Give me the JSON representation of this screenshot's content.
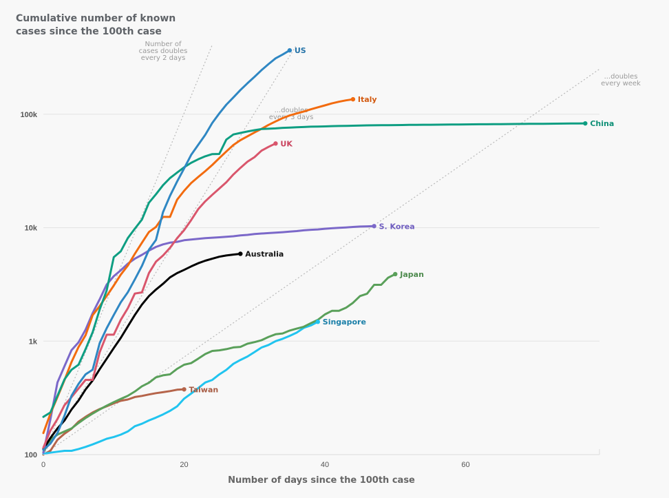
{
  "chart_data": {
    "type": "line",
    "title": "Cumulative number of known cases since the 100th case",
    "xlabel": "Number of days since the 100th case",
    "ylabel": "",
    "yscale": "log",
    "xlim": [
      0,
      79
    ],
    "ylim": [
      100,
      400000
    ],
    "grid": true,
    "x_ticks": [
      0,
      20,
      40,
      60
    ],
    "y_ticks": [
      {
        "value": 100,
        "label": "100"
      },
      {
        "value": 1000,
        "label": "1k"
      },
      {
        "value": 10000,
        "label": "10k"
      },
      {
        "value": 100000,
        "label": "100k"
      }
    ],
    "reference_lines": [
      {
        "name": "doubles-every-2-days",
        "label_lines": [
          "Number of",
          "cases doubles",
          "every 2 days"
        ],
        "doubling_days": 2,
        "start_value": 100,
        "x_end": 24
      },
      {
        "name": "doubles-every-3-days",
        "label_lines": [
          "...doubles",
          "every 3 days"
        ],
        "doubling_days": 3,
        "start_value": 100,
        "x_end": 36
      },
      {
        "name": "doubles-every-week",
        "label_lines": [
          "...doubles",
          "every week"
        ],
        "doubling_days": 7,
        "start_value": 100,
        "x_end": 79
      }
    ],
    "series": [
      {
        "name": "China",
        "color": "#0e9e82",
        "values": [
          215,
          235,
          330,
          460,
          560,
          620,
          850,
          1200,
          1900,
          2800,
          5500,
          6200,
          8100,
          9800,
          11800,
          16600,
          19700,
          23700,
          27400,
          30600,
          34100,
          37300,
          40100,
          42600,
          44600,
          44700,
          59800,
          66400,
          68500,
          70500,
          72400,
          74100,
          74600,
          75100,
          75900,
          76300,
          76800,
          77200,
          77700,
          78000,
          78200,
          78600,
          78800,
          79000,
          79300,
          79500,
          79800,
          80000,
          80100,
          80200,
          80300,
          80400,
          80600,
          80700,
          80800,
          80900,
          81000,
          81100,
          81200,
          81300,
          81400,
          81500,
          81600,
          81700,
          81800,
          81900,
          82000,
          82100,
          82200,
          82300,
          82400,
          82500,
          82600,
          82700,
          82800,
          82900,
          83000,
          83100
        ]
      },
      {
        "name": "US",
        "color": "#2f87c3",
        "values": [
          110,
          125,
          155,
          220,
          330,
          420,
          510,
          560,
          960,
          1300,
          1700,
          2200,
          2700,
          3500,
          4600,
          6400,
          7800,
          13700,
          19100,
          25500,
          33300,
          43800,
          53700,
          65800,
          83800,
          101700,
          121500,
          140900,
          163600,
          187700,
          214000,
          245000,
          277000,
          311000,
          336000,
          366000
        ]
      },
      {
        "name": "Italy",
        "color": "#f26b0f",
        "values": [
          155,
          229,
          322,
          453,
          655,
          888,
          1128,
          1694,
          2036,
          2502,
          3089,
          3858,
          4636,
          5883,
          7375,
          9172,
          10149,
          12462,
          12462,
          17660,
          21157,
          24747,
          27980,
          31506,
          35713,
          41035,
          47021,
          53578,
          59138,
          63927,
          69176,
          74386,
          80589,
          86498,
          92472,
          97689,
          101739,
          105792,
          110574,
          115242,
          119827,
          124632,
          128948,
          132547,
          135586
        ]
      },
      {
        "name": "UK",
        "color": "#d9566c",
        "values": [
          115,
          163,
          206,
          273,
          321,
          382,
          456,
          456,
          798,
          1140,
          1140,
          1543,
          1950,
          2626,
          2689,
          3983,
          5018,
          5683,
          6650,
          8077,
          9529,
          11658,
          14543,
          17089,
          19522,
          22141,
          25150,
          29474,
          33718,
          38168,
          41903,
          47806,
          51608,
          55242
        ]
      },
      {
        "name": "S. Korea",
        "color": "#7b68c9",
        "values": [
          104,
          204,
          433,
          602,
          833,
          977,
          1261,
          1766,
          2337,
          3150,
          3736,
          4212,
          4812,
          5328,
          5766,
          6284,
          6767,
          7134,
          7382,
          7513,
          7755,
          7869,
          7979,
          8086,
          8162,
          8236,
          8320,
          8413,
          8565,
          8652,
          8799,
          8897,
          8961,
          9037,
          9137,
          9241,
          9332,
          9478,
          9583,
          9661,
          9786,
          9887,
          9976,
          10062,
          10156,
          10237,
          10284,
          10331
        ]
      },
      {
        "name": "Australia",
        "color": "#000000",
        "values": [
          112,
          140,
          170,
          200,
          250,
          300,
          375,
          450,
          565,
          700,
          870,
          1070,
          1350,
          1700,
          2100,
          2500,
          2850,
          3200,
          3650,
          3980,
          4250,
          4560,
          4860,
          5120,
          5330,
          5550,
          5690,
          5800,
          5890
        ]
      },
      {
        "name": "Japan",
        "color": "#5aa05a",
        "values": [
          105,
          135,
          150,
          160,
          170,
          190,
          210,
          230,
          250,
          270,
          290,
          310,
          330,
          360,
          400,
          430,
          480,
          500,
          510,
          570,
          620,
          640,
          700,
          770,
          820,
          830,
          850,
          880,
          890,
          950,
          980,
          1020,
          1090,
          1150,
          1170,
          1240,
          1290,
          1340,
          1440,
          1540,
          1720,
          1850,
          1850,
          1970,
          2180,
          2500,
          2620,
          3140,
          3140,
          3630,
          3900
        ]
      },
      {
        "name": "Singapore",
        "color": "#21c4ef",
        "values": [
          102,
          104,
          106,
          108,
          108,
          112,
          117,
          123,
          130,
          138,
          143,
          150,
          160,
          178,
          187,
          200,
          212,
          226,
          243,
          266,
          311,
          345,
          385,
          432,
          455,
          509,
          558,
          631,
          683,
          732,
          802,
          879,
          926,
          1000,
          1049,
          1114,
          1189,
          1309,
          1375,
          1481
        ]
      },
      {
        "name": "Taiwan",
        "color": "#b5644a",
        "values": [
          100,
          108,
          135,
          153,
          169,
          195,
          215,
          235,
          252,
          267,
          283,
          298,
          306,
          322,
          329,
          339,
          348,
          355,
          363,
          373,
          376
        ]
      }
    ]
  }
}
